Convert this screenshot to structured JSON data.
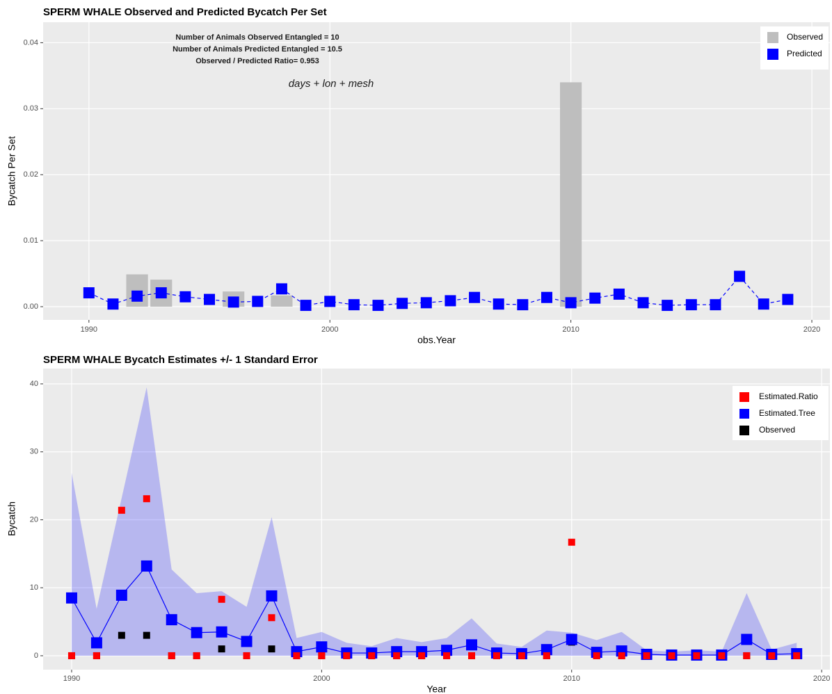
{
  "chart_data": [
    {
      "type": "combo",
      "title": "SPERM WHALE Observed and Predicted Bycatch Per Set",
      "annotations": [
        "Number of Animals Observed Entangled = 10",
        "Number of Animals Predicted Entangled = 10.5",
        "Observed / Predicted Ratio= 0.953",
        "days + lon + mesh"
      ],
      "x_label": "obs.Year",
      "y_label": "Bycatch Per Set",
      "x": [
        1990,
        1991,
        1992,
        1993,
        1994,
        1995,
        1996,
        1997,
        1998,
        1999,
        2000,
        2001,
        2002,
        2003,
        2004,
        2005,
        2006,
        2007,
        2008,
        2009,
        2010,
        2011,
        2012,
        2013,
        2014,
        2015,
        2016,
        2017,
        2018,
        2019
      ],
      "series": [
        {
          "name": "Observed",
          "type": "bar",
          "color": "#bebebe",
          "values": [
            0,
            0,
            0.0049,
            0.0041,
            0,
            0,
            0.0023,
            0,
            0.0017,
            0,
            0,
            0,
            0,
            0,
            0,
            0,
            0,
            0,
            0,
            0,
            0.034,
            0,
            0,
            0,
            0,
            0,
            0,
            0,
            0,
            0
          ]
        },
        {
          "name": "Predicted",
          "type": "line",
          "linestyle": "dashed",
          "color": "#0000ff",
          "values": [
            0.0021,
            0.0004,
            0.0016,
            0.0021,
            0.0015,
            0.0011,
            0.0007,
            0.0008,
            0.0027,
            0.0002,
            0.0008,
            0.0003,
            0.0002,
            0.0005,
            0.0006,
            0.0009,
            0.0014,
            0.0004,
            0.0003,
            0.0014,
            0.0006,
            0.0013,
            0.0019,
            0.0006,
            0.0002,
            0.0003,
            0.0003,
            0.0046,
            0.0004,
            0.0011
          ]
        }
      ],
      "xlim": [
        1988.1,
        2020.75
      ],
      "xticks": [
        1990,
        2000,
        2010,
        2020
      ],
      "ylim": [
        -0.002,
        0.0431
      ],
      "yticks": [
        {
          "value": 0,
          "label": "0.00"
        },
        0.01,
        0.02,
        0.03,
        0.04
      ],
      "grid": true,
      "legend": "top-right"
    },
    {
      "type": "combo",
      "title": "SPERM WHALE Bycatch Estimates +/- 1 Standard Error",
      "x_label": "Year",
      "y_label": "Bycatch",
      "x": [
        1990,
        1991,
        1992,
        1993,
        1994,
        1995,
        1996,
        1997,
        1998,
        1999,
        2000,
        2001,
        2002,
        2003,
        2004,
        2005,
        2006,
        2007,
        2008,
        2009,
        2010,
        2011,
        2012,
        2013,
        2014,
        2015,
        2016,
        2017,
        2018,
        2019
      ],
      "series": [
        {
          "name": "Estimated.Ratio",
          "type": "scatter",
          "color": "#ff0000",
          "values": [
            0,
            0,
            21.4,
            23.1,
            0,
            0,
            8.3,
            0,
            5.6,
            0,
            0,
            0,
            0,
            0,
            0,
            0,
            0,
            0,
            0,
            0,
            16.7,
            0,
            0,
            0,
            0,
            0,
            0,
            0,
            0,
            0
          ]
        },
        {
          "name": "Estimated.Tree",
          "type": "line",
          "linestyle": "solid",
          "color": "#0000ff",
          "values": [
            8.5,
            1.9,
            8.9,
            13.2,
            5.3,
            3.4,
            3.5,
            2.1,
            8.8,
            0.6,
            1.3,
            0.4,
            0.4,
            0.6,
            0.6,
            0.8,
            1.6,
            0.4,
            0.3,
            0.9,
            2.4,
            0.5,
            0.7,
            0.2,
            0.1,
            0.1,
            0.1,
            2.4,
            0.2,
            0.3
          ],
          "lower": [
            0,
            0,
            0,
            0,
            0,
            0,
            0,
            0,
            0,
            0,
            0,
            0,
            0,
            0,
            0,
            0,
            0,
            0,
            0,
            0,
            0,
            0,
            0,
            0,
            0,
            0,
            0,
            0,
            0,
            0
          ],
          "upper": [
            26.9,
            6.9,
            23.2,
            39.5,
            12.7,
            9.2,
            9.5,
            7.2,
            20.4,
            2.6,
            3.5,
            1.9,
            1.4,
            2.6,
            2.0,
            2.6,
            5.5,
            1.8,
            1.3,
            3.7,
            3.4,
            2.3,
            3.5,
            0.8,
            0.6,
            0.8,
            0.6,
            9.2,
            0.9,
            1.9
          ]
        },
        {
          "name": "Observed",
          "type": "scatter",
          "color": "#000000",
          "values": [
            0,
            0,
            3,
            3,
            0,
            0,
            1,
            0,
            1,
            0,
            0,
            0,
            0,
            0,
            0,
            0,
            0,
            0,
            0,
            0,
            2,
            0,
            0,
            0,
            0,
            0,
            0,
            0,
            0,
            0
          ]
        }
      ],
      "xlim": [
        1988.86,
        2020.33
      ],
      "xticks": [
        1990,
        2000,
        2010,
        2020
      ],
      "ylim": [
        -2.05,
        42.25
      ],
      "yticks": [
        0,
        10,
        20,
        30,
        40
      ],
      "grid": true,
      "legend": "top-right"
    }
  ]
}
